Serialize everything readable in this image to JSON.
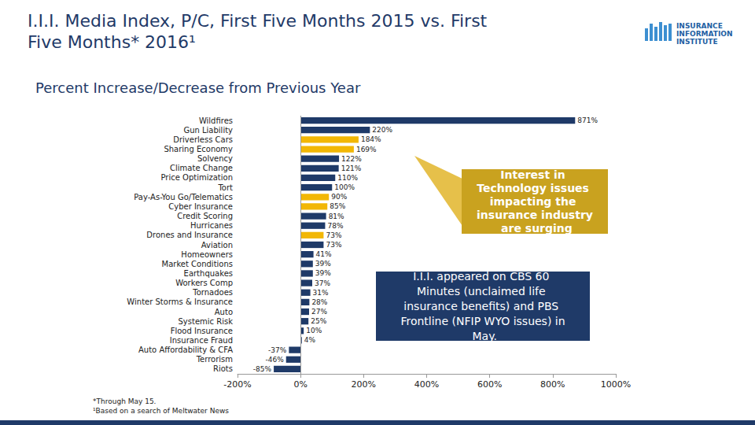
{
  "chart_data": {
    "type": "bar",
    "orientation": "horizontal",
    "title": "I.I.I. Media Index, P/C, First Five Months 2015 vs. First Five Months* 2016¹",
    "subtitle": "Percent Increase/Decrease from Previous Year",
    "categories": [
      "Wildfires",
      "Gun Liability",
      "Driverless Cars",
      "Sharing Economy",
      "Solvency",
      "Climate Change",
      "Price Optimization",
      "Tort",
      "Pay-As-You Go/Telematics",
      "Cyber Insurance",
      "Credit Scoring",
      "Hurricanes",
      "Drones and Insurance",
      "Aviation",
      "Homeowners",
      "Market Conditions",
      "Earthquakes",
      "Workers Comp",
      "Tornadoes",
      "Winter Storms & Insurance",
      "Auto",
      "Systemic Risk",
      "Flood Insurance",
      "Insurance Fraud",
      "Auto Affordability & CFA",
      "Terrorism",
      "Riots"
    ],
    "values": [
      871,
      220,
      184,
      169,
      122,
      121,
      110,
      100,
      90,
      85,
      81,
      78,
      73,
      73,
      41,
      39,
      39,
      37,
      31,
      28,
      27,
      25,
      10,
      4,
      -37,
      -46,
      -85
    ],
    "value_labels": [
      "871%",
      "220%",
      "184%",
      "169%",
      "122%",
      "121%",
      "110%",
      "100%",
      "90%",
      "85%",
      "81%",
      "78%",
      "73%",
      "73%",
      "41%",
      "39%",
      "39%",
      "37%",
      "31%",
      "28%",
      "27%",
      "25%",
      "10%",
      "4%",
      "-37%",
      "-46%",
      "-85%"
    ],
    "colors": [
      "#1f3a68",
      "#1f3a68",
      "#f2b705",
      "#f2b705",
      "#1f3a68",
      "#1f3a68",
      "#1f3a68",
      "#1f3a68",
      "#f2b705",
      "#f2b705",
      "#1f3a68",
      "#1f3a68",
      "#f2b705",
      "#1f3a68",
      "#1f3a68",
      "#1f3a68",
      "#1f3a68",
      "#1f3a68",
      "#1f3a68",
      "#1f3a68",
      "#1f3a68",
      "#1f3a68",
      "#1f3a68",
      "#1f3a68",
      "#1f3a68",
      "#1f3a68",
      "#1f3a68"
    ],
    "data_labels": true,
    "grid": false,
    "xlim": [
      -200,
      1000
    ],
    "xticks": [
      {
        "value": -200,
        "label": "-200%"
      },
      {
        "value": 0,
        "label": "0%"
      },
      {
        "value": 200,
        "label": "200%"
      },
      {
        "value": 400,
        "label": "400%"
      },
      {
        "value": 600,
        "label": "600%"
      },
      {
        "value": 800,
        "label": "800%"
      },
      {
        "value": 1000,
        "label": "1000%"
      }
    ],
    "annotations": [
      "Interest in Technology issues impacting the insurance industry are surging",
      "I.I.I. appeared on CBS 60 Minutes (unclaimed life insurance benefits) and PBS Frontline (NFIP WYO issues) in May."
    ],
    "footnotes": [
      "*Through May 15.",
      "¹Based on a search of Meltwater News"
    ],
    "logo": "INSURANCE INFORMATION INSTITUTE"
  }
}
